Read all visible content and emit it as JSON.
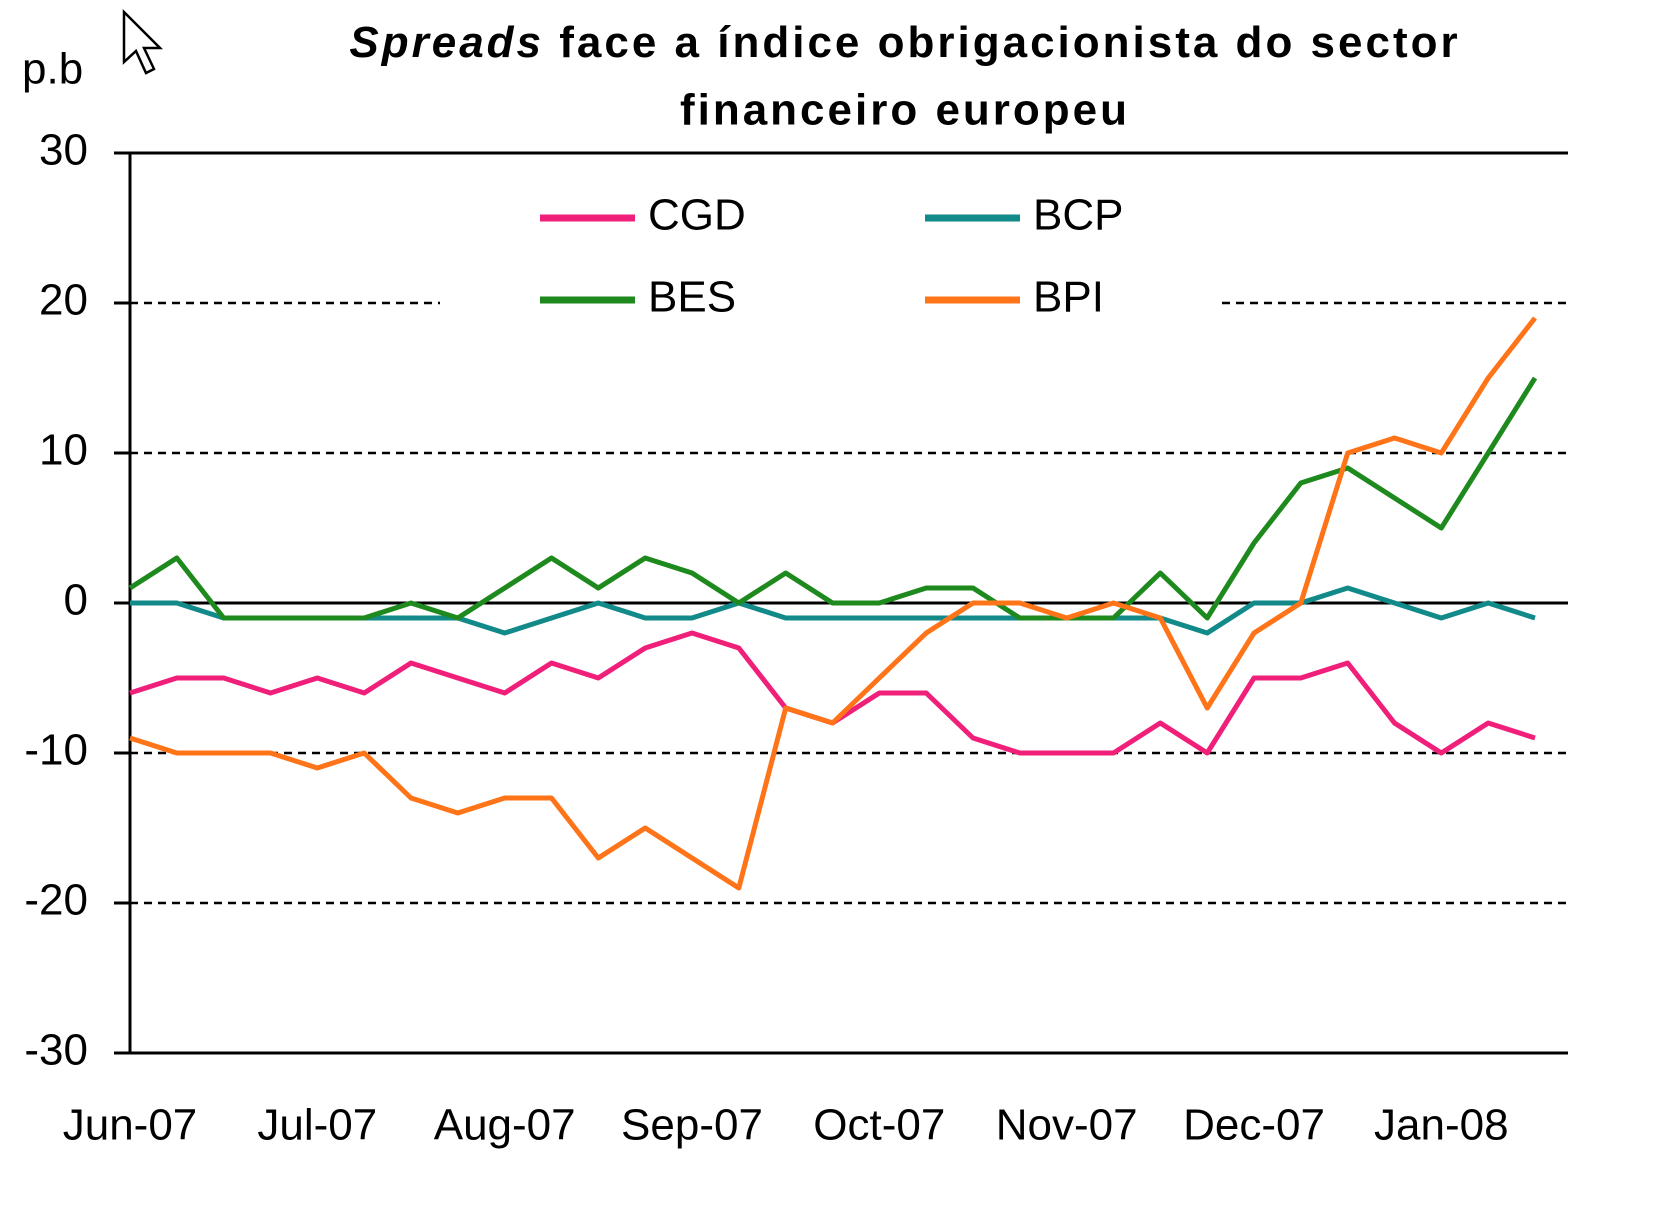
{
  "chart_data": {
    "type": "line",
    "title_emphasis": "Spreads",
    "title_lines": [
      "face a índice obrigacionista do sector",
      "financeiro europeu"
    ],
    "y_axis_label": "p.b",
    "categories": [
      "Jun-07",
      null,
      null,
      null,
      "Jul-07",
      null,
      null,
      null,
      "Aug-07",
      null,
      null,
      null,
      "Sep-07",
      null,
      null,
      null,
      "Oct-07",
      null,
      null,
      null,
      "Nov-07",
      null,
      null,
      null,
      "Dec-07",
      null,
      null,
      null,
      "Jan-08",
      null,
      null
    ],
    "series": [
      {
        "name": "CGD",
        "color": "#f0207a",
        "values": [
          -6,
          -5,
          -5,
          -6,
          -5,
          -6,
          -4,
          -5,
          -6,
          -4,
          -5,
          -3,
          -2,
          -3,
          -7,
          -8,
          -6,
          -6,
          -9,
          -10,
          -10,
          -10,
          -8,
          -10,
          -5,
          -5,
          -4,
          -8,
          -10,
          -8,
          -9
        ]
      },
      {
        "name": "BCP",
        "color": "#138a8a",
        "values": [
          0,
          0,
          -1,
          -1,
          -1,
          -1,
          -1,
          -1,
          -2,
          -1,
          0,
          -1,
          -1,
          0,
          -1,
          -1,
          -1,
          -1,
          -1,
          -1,
          -1,
          -1,
          -1,
          -2,
          0,
          0,
          1,
          0,
          -1,
          0,
          -1
        ]
      },
      {
        "name": "BES",
        "color": "#1e8a1e",
        "values": [
          1,
          3,
          -1,
          -1,
          -1,
          -1,
          0,
          -1,
          1,
          3,
          1,
          3,
          2,
          0,
          2,
          0,
          0,
          1,
          1,
          -1,
          -1,
          -1,
          2,
          -1,
          4,
          8,
          9,
          7,
          5,
          10,
          15
        ]
      },
      {
        "name": "BPI",
        "color": "#ff7418",
        "values": [
          -9,
          -10,
          -10,
          -10,
          -11,
          -10,
          -13,
          -14,
          -13,
          -13,
          -17,
          -15,
          -17,
          -19,
          -7,
          -8,
          -5,
          -2,
          0,
          0,
          -1,
          0,
          -1,
          -7,
          -2,
          0,
          10,
          11,
          10,
          15,
          19
        ]
      }
    ],
    "ylim": [
      -30,
      30
    ],
    "yticks": [
      -30,
      -20,
      -10,
      0,
      10,
      20,
      30
    ],
    "grid": true,
    "legend": "top"
  }
}
